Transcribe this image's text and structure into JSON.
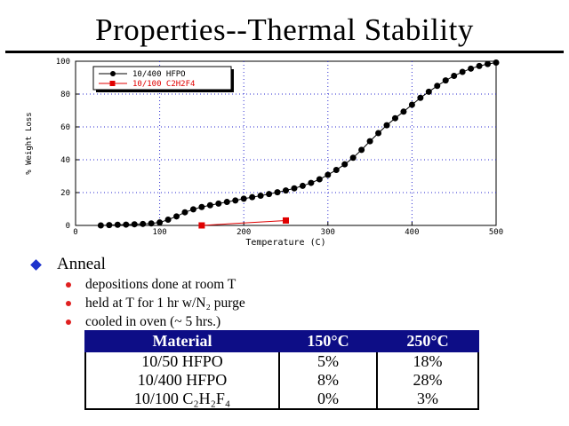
{
  "title": "Properties--Thermal Stability",
  "chart_data": {
    "type": "scatter",
    "xlabel": "Temperature (C)",
    "ylabel": "% Weight Loss",
    "xlim": [
      0,
      500
    ],
    "ylim": [
      0,
      100
    ],
    "xticks": [
      0,
      100,
      200,
      300,
      400,
      500
    ],
    "yticks": [
      0,
      20,
      40,
      60,
      80,
      100
    ],
    "grid": true,
    "legend_position": "top-left",
    "series": [
      {
        "name": "10/400 HFPO",
        "color": "#000000",
        "marker": "circle",
        "x": [
          30,
          40,
          50,
          60,
          70,
          80,
          90,
          100,
          110,
          120,
          130,
          140,
          150,
          160,
          170,
          180,
          190,
          200,
          210,
          220,
          230,
          240,
          250,
          260,
          270,
          280,
          290,
          300,
          310,
          320,
          330,
          340,
          350,
          360,
          370,
          380,
          390,
          400,
          410,
          420,
          430,
          440,
          450,
          460,
          470,
          480,
          490,
          500
        ],
        "y": [
          0,
          0.2,
          0.4,
          0.5,
          0.7,
          0.9,
          1.2,
          1.8,
          3.5,
          5.5,
          8,
          9.8,
          11.2,
          12.3,
          13.3,
          14.3,
          15.2,
          16.3,
          17.2,
          18.1,
          19.1,
          20.2,
          21.3,
          22.6,
          24.1,
          25.9,
          28.1,
          30.8,
          33.8,
          37.2,
          41.2,
          46,
          51.3,
          56.2,
          61,
          65.3,
          69.3,
          73.5,
          77.7,
          81.4,
          85,
          88.3,
          91.1,
          93.5,
          95.5,
          97.1,
          98.3,
          99.2
        ]
      },
      {
        "name": "10/100 C2H2F4",
        "color": "#e00000",
        "marker": "square",
        "x": [
          150,
          250
        ],
        "y": [
          0,
          3
        ]
      }
    ]
  },
  "bullets": {
    "main": "Anneal",
    "subs": [
      "depositions done at room T",
      "held at T for 1 hr w/N₂ purge",
      "cooled in oven (~ 5 hrs.)"
    ]
  },
  "table": {
    "headers": [
      "Material",
      "150°C",
      "250°C"
    ],
    "rows": [
      [
        "10/50 HFPO",
        "5%",
        "18%"
      ],
      [
        "10/400 HFPO",
        "8%",
        "28%"
      ],
      [
        "10/100 C₂H₂F₄",
        "0%",
        "3%"
      ]
    ]
  }
}
